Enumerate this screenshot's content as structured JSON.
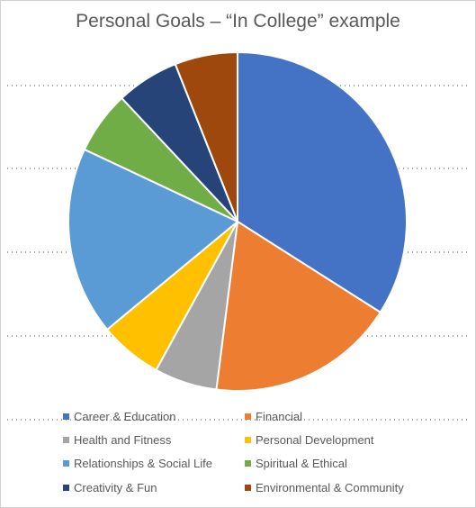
{
  "chart_data": {
    "type": "pie",
    "title": "Personal Goals – “In College” example",
    "legend_position": "bottom",
    "grid": true,
    "start_angle_deg": 0,
    "direction": "clockwise",
    "categories": [
      "Career & Education",
      "Financial",
      "Health and Fitness",
      "Personal Development",
      "Relationships & Social Life",
      "Spiritual & Ethical",
      "Creativity & Fun",
      "Environmental & Community"
    ],
    "values": [
      34,
      18,
      6,
      6,
      18,
      6,
      6,
      6
    ],
    "colors": [
      "#4472C4",
      "#ED7D31",
      "#A5A5A5",
      "#FFC000",
      "#5B9BD5",
      "#70AD47",
      "#264478",
      "#9E480E"
    ]
  }
}
